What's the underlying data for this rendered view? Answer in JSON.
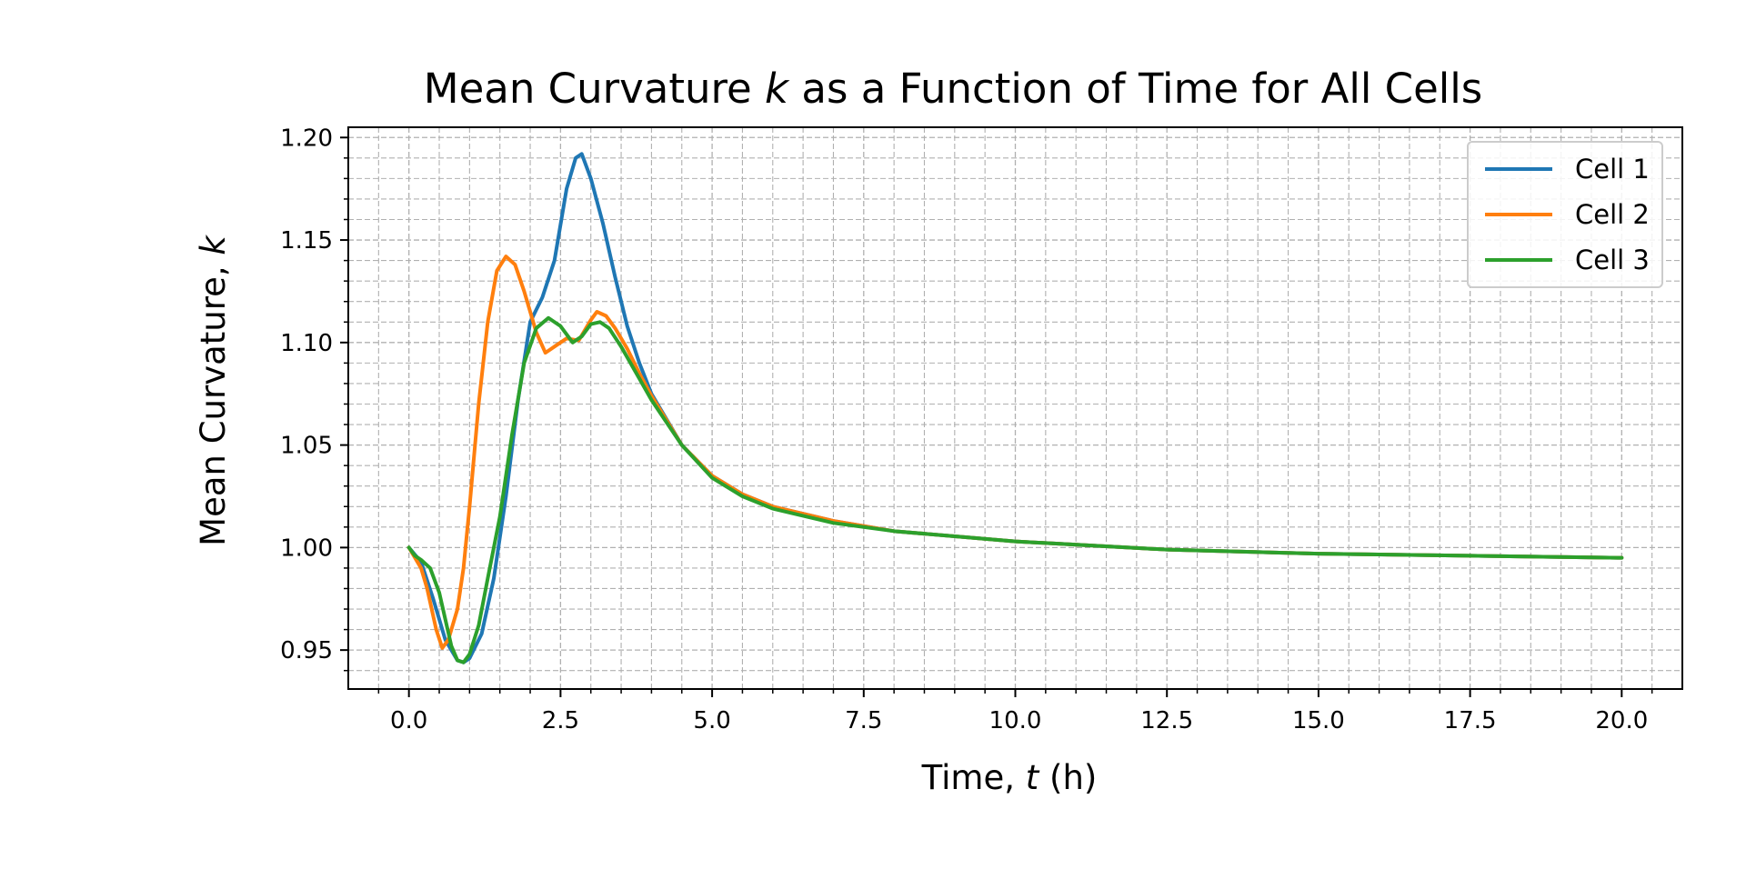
{
  "chart_data": {
    "type": "line",
    "title": "Mean Curvature k as a Function of Time for All Cells",
    "title_parts": {
      "before": "Mean Curvature ",
      "italic": "k",
      "after": " as a Function of Time for All Cells"
    },
    "xlabel": "Time, t (h)",
    "xlabel_parts": {
      "before": "Time, ",
      "italic": "t",
      "after": " (h)"
    },
    "ylabel": "Mean Curvature, k",
    "ylabel_parts": {
      "before": "Mean Curvature, ",
      "italic": "k"
    },
    "xlim": [
      -1.0,
      21.0
    ],
    "ylim": [
      0.931,
      1.205
    ],
    "xticks": [
      0.0,
      2.5,
      5.0,
      7.5,
      10.0,
      12.5,
      15.0,
      17.5,
      20.0
    ],
    "xtick_labels": [
      "0.0",
      "2.5",
      "5.0",
      "7.5",
      "10.0",
      "12.5",
      "15.0",
      "17.5",
      "20.0"
    ],
    "yticks": [
      0.95,
      1.0,
      1.05,
      1.1,
      1.15,
      1.2
    ],
    "ytick_labels": [
      "0.95",
      "1.00",
      "1.05",
      "1.10",
      "1.15",
      "1.20"
    ],
    "x_minor_step": 0.5,
    "y_minor_step": 0.01,
    "grid": true,
    "legend_position": "top-right",
    "series": [
      {
        "name": "Cell 1",
        "color": "#1f77b4",
        "points": [
          [
            0,
            1.0
          ],
          [
            0.2,
            0.993
          ],
          [
            0.4,
            0.975
          ],
          [
            0.6,
            0.955
          ],
          [
            0.8,
            0.945
          ],
          [
            0.9,
            0.944
          ],
          [
            1.0,
            0.946
          ],
          [
            1.2,
            0.958
          ],
          [
            1.4,
            0.985
          ],
          [
            1.6,
            1.025
          ],
          [
            1.8,
            1.072
          ],
          [
            2.0,
            1.11
          ],
          [
            2.2,
            1.122
          ],
          [
            2.4,
            1.14
          ],
          [
            2.6,
            1.175
          ],
          [
            2.75,
            1.19
          ],
          [
            2.85,
            1.192
          ],
          [
            3.0,
            1.18
          ],
          [
            3.2,
            1.158
          ],
          [
            3.4,
            1.132
          ],
          [
            3.6,
            1.108
          ],
          [
            3.8,
            1.09
          ],
          [
            4.0,
            1.075
          ],
          [
            4.5,
            1.05
          ],
          [
            5.0,
            1.035
          ],
          [
            5.5,
            1.026
          ],
          [
            6.0,
            1.02
          ],
          [
            7.0,
            1.013
          ],
          [
            8.0,
            1.008
          ],
          [
            10.0,
            1.003
          ],
          [
            12.5,
            0.999
          ],
          [
            15.0,
            0.997
          ],
          [
            17.5,
            0.996
          ],
          [
            20.0,
            0.995
          ]
        ]
      },
      {
        "name": "Cell 2",
        "color": "#ff7f0e",
        "points": [
          [
            0,
            1.0
          ],
          [
            0.2,
            0.99
          ],
          [
            0.3,
            0.98
          ],
          [
            0.45,
            0.96
          ],
          [
            0.55,
            0.951
          ],
          [
            0.65,
            0.955
          ],
          [
            0.8,
            0.97
          ],
          [
            0.9,
            0.99
          ],
          [
            1.0,
            1.02
          ],
          [
            1.15,
            1.07
          ],
          [
            1.3,
            1.11
          ],
          [
            1.45,
            1.135
          ],
          [
            1.6,
            1.142
          ],
          [
            1.75,
            1.138
          ],
          [
            1.9,
            1.125
          ],
          [
            2.1,
            1.105
          ],
          [
            2.25,
            1.095
          ],
          [
            2.4,
            1.098
          ],
          [
            2.6,
            1.102
          ],
          [
            2.8,
            1.101
          ],
          [
            3.0,
            1.111
          ],
          [
            3.1,
            1.115
          ],
          [
            3.25,
            1.113
          ],
          [
            3.4,
            1.107
          ],
          [
            3.6,
            1.097
          ],
          [
            3.8,
            1.085
          ],
          [
            4.0,
            1.074
          ],
          [
            4.5,
            1.05
          ],
          [
            5.0,
            1.035
          ],
          [
            5.5,
            1.026
          ],
          [
            6.0,
            1.02
          ],
          [
            7.0,
            1.013
          ],
          [
            8.0,
            1.008
          ],
          [
            10.0,
            1.003
          ],
          [
            12.5,
            0.999
          ],
          [
            15.0,
            0.997
          ],
          [
            17.5,
            0.996
          ],
          [
            20.0,
            0.995
          ]
        ]
      },
      {
        "name": "Cell 3",
        "color": "#2ca02c",
        "points": [
          [
            0,
            1.0
          ],
          [
            0.1,
            0.996
          ],
          [
            0.2,
            0.994
          ],
          [
            0.35,
            0.99
          ],
          [
            0.5,
            0.978
          ],
          [
            0.6,
            0.965
          ],
          [
            0.7,
            0.952
          ],
          [
            0.8,
            0.945
          ],
          [
            0.9,
            0.944
          ],
          [
            1.0,
            0.948
          ],
          [
            1.15,
            0.962
          ],
          [
            1.3,
            0.985
          ],
          [
            1.5,
            1.015
          ],
          [
            1.7,
            1.055
          ],
          [
            1.9,
            1.09
          ],
          [
            2.1,
            1.107
          ],
          [
            2.3,
            1.112
          ],
          [
            2.5,
            1.108
          ],
          [
            2.7,
            1.1
          ],
          [
            2.85,
            1.103
          ],
          [
            3.0,
            1.109
          ],
          [
            3.15,
            1.11
          ],
          [
            3.3,
            1.107
          ],
          [
            3.5,
            1.098
          ],
          [
            3.75,
            1.085
          ],
          [
            4.0,
            1.072
          ],
          [
            4.5,
            1.05
          ],
          [
            5.0,
            1.034
          ],
          [
            5.5,
            1.025
          ],
          [
            6.0,
            1.019
          ],
          [
            7.0,
            1.012
          ],
          [
            8.0,
            1.008
          ],
          [
            10.0,
            1.003
          ],
          [
            12.5,
            0.999
          ],
          [
            15.0,
            0.997
          ],
          [
            17.5,
            0.996
          ],
          [
            20.0,
            0.995
          ]
        ]
      }
    ]
  }
}
